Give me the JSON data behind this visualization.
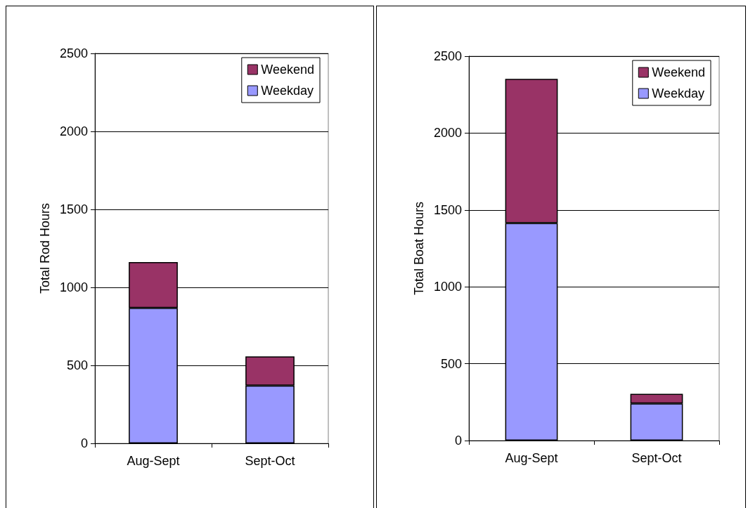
{
  "chart_data": [
    {
      "type": "bar",
      "stacked": true,
      "ylabel": "Total Rod Hours",
      "categories": [
        "Aug-Sept",
        "Sept-Oct"
      ],
      "ylim": [
        0,
        2500
      ],
      "yticks": [
        0,
        500,
        1000,
        1500,
        2000,
        2500
      ],
      "grid": "y",
      "legend": "top right",
      "series": [
        {
          "name": "Weekday",
          "color": "#9999ff",
          "values": [
            868,
            370
          ]
        },
        {
          "name": "Weekend",
          "color": "#993366",
          "values": [
            294,
            187
          ]
        }
      ]
    },
    {
      "type": "bar",
      "stacked": true,
      "ylabel": "Total Boat Hours",
      "categories": [
        "Aug-Sept",
        "Sept-Oct"
      ],
      "ylim": [
        0,
        2500
      ],
      "yticks": [
        0,
        500,
        1000,
        1500,
        2000,
        2500
      ],
      "grid": "y",
      "legend": "top right",
      "series": [
        {
          "name": "Weekday",
          "color": "#9999ff",
          "values": [
            1414,
            241
          ]
        },
        {
          "name": "Weekend",
          "color": "#993366",
          "values": [
            939,
            63
          ]
        }
      ]
    }
  ]
}
